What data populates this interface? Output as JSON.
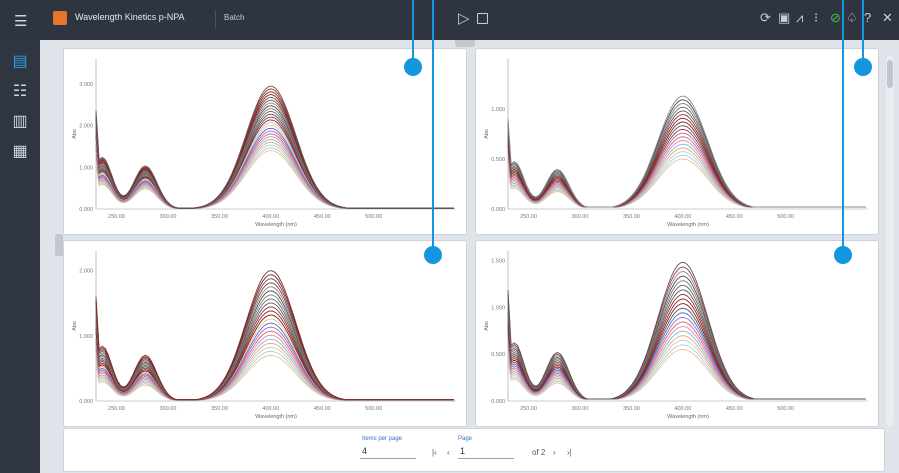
{
  "app": {
    "title": "Wavelength Kinetics p-NPA",
    "batch_label": "Batch"
  },
  "colors": {
    "accent": "#1496e0",
    "topbar": "#2e3440",
    "sidebar": "#2f3541",
    "brand": "#e8752a"
  },
  "toolbar": {
    "icons": [
      "refresh-icon",
      "image-icon",
      "chart-icon",
      "info-icon",
      "link-icon",
      "bell-icon",
      "help-icon",
      "close-icon"
    ]
  },
  "sidebar": {
    "items": [
      "report-icon",
      "filter-icon",
      "map-icon",
      "clipboard-icon"
    ],
    "active": "report-icon"
  },
  "pagination": {
    "items_per_page_label": "Items per page",
    "items_per_page": "4",
    "page_label": "Page",
    "page": "1",
    "of_pages": "of 2"
  },
  "chart_data": [
    {
      "type": "line",
      "xlabel": "Wavelength (nm)",
      "ylabel": "Abs",
      "xlim": [
        230,
        580
      ],
      "ylim": [
        0,
        3.6
      ],
      "xticks": [
        "250.00",
        "300.00",
        "350.00",
        "400.00",
        "450.00",
        "500.00"
      ],
      "yticks": [
        "0.000",
        "1.000",
        "2.000",
        "3.000"
      ],
      "peak_x": 400,
      "num_traces": 24,
      "max_peak": 2.95,
      "min_peak": 1.4
    },
    {
      "type": "line",
      "xlabel": "Wavelength (nm)",
      "ylabel": "Abs",
      "xlim": [
        230,
        580
      ],
      "ylim": [
        0,
        1.5
      ],
      "xticks": [
        "250.00",
        "300.00",
        "350.00",
        "400.00",
        "450.00",
        "500.00"
      ],
      "yticks": [
        "0.000",
        "0.500",
        "1.000"
      ],
      "peak_x": 400,
      "num_traces": 18,
      "max_peak": 1.13,
      "min_peak": 0.5
    },
    {
      "type": "line",
      "xlabel": "Wavelength (nm)",
      "ylabel": "Abs",
      "xlim": [
        230,
        580
      ],
      "ylim": [
        0,
        2.3
      ],
      "xticks": [
        "250.00",
        "300.00",
        "350.00",
        "400.00",
        "450.00",
        "500.00"
      ],
      "yticks": [
        "0.000",
        "1.000",
        "2.000"
      ],
      "peak_x": 400,
      "num_traces": 22,
      "max_peak": 2.0,
      "min_peak": 0.7
    },
    {
      "type": "line",
      "xlabel": "Wavelength (nm)",
      "ylabel": "Abs",
      "xlim": [
        230,
        580
      ],
      "ylim": [
        0,
        1.6
      ],
      "xticks": [
        "250.00",
        "300.00",
        "350.00",
        "400.00",
        "450.00",
        "500.00"
      ],
      "yticks": [
        "0.000",
        "0.500",
        "1.000",
        "1.500"
      ],
      "peak_x": 400,
      "num_traces": 20,
      "max_peak": 1.48,
      "min_peak": 0.55
    }
  ]
}
